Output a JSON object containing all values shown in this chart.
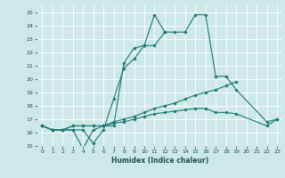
{
  "title": "",
  "xlabel": "Humidex (Indice chaleur)",
  "xlim": [
    -0.5,
    23.5
  ],
  "ylim": [
    15,
    25.5
  ],
  "yticks": [
    15,
    16,
    17,
    18,
    19,
    20,
    21,
    22,
    23,
    24,
    25
  ],
  "xticks": [
    0,
    1,
    2,
    3,
    4,
    5,
    6,
    7,
    8,
    9,
    10,
    11,
    12,
    13,
    14,
    15,
    16,
    17,
    18,
    19,
    20,
    21,
    22,
    23
  ],
  "xtick_labels": [
    "0",
    "1",
    "2",
    "3",
    "4",
    "5",
    "6",
    "7",
    "8",
    "9",
    "10",
    "11",
    "12",
    "13",
    "14",
    "15",
    "16",
    "17",
    "18",
    "19",
    "20",
    "21",
    "22",
    "23"
  ],
  "bg_color": "#cee8ea",
  "grid_color": "#ffffff",
  "line_color": "#1a7872",
  "series": [
    [
      16.5,
      16.2,
      16.2,
      16.2,
      16.2,
      15.2,
      16.2,
      18.5,
      20.8,
      21.5,
      22.5,
      24.8,
      23.5,
      23.5,
      23.5,
      24.8,
      24.8,
      20.2,
      20.2,
      19.2,
      null,
      null,
      16.8,
      17.0
    ],
    [
      16.5,
      16.2,
      16.2,
      16.2,
      14.8,
      16.2,
      16.5,
      16.5,
      21.2,
      22.3,
      22.5,
      22.5,
      23.5,
      null,
      null,
      null,
      null,
      null,
      null,
      null,
      null,
      null,
      null,
      null
    ],
    [
      16.5,
      16.2,
      16.2,
      16.5,
      16.5,
      16.5,
      16.5,
      16.8,
      17.0,
      17.2,
      17.5,
      17.8,
      18.0,
      18.2,
      18.5,
      18.8,
      19.0,
      19.2,
      19.5,
      19.8,
      null,
      null,
      null,
      null
    ],
    [
      16.5,
      16.2,
      16.2,
      16.5,
      16.5,
      16.5,
      16.5,
      16.7,
      16.8,
      17.0,
      17.2,
      17.4,
      17.5,
      17.6,
      17.7,
      17.8,
      17.8,
      17.5,
      17.5,
      17.4,
      null,
      null,
      16.5,
      17.0
    ]
  ]
}
